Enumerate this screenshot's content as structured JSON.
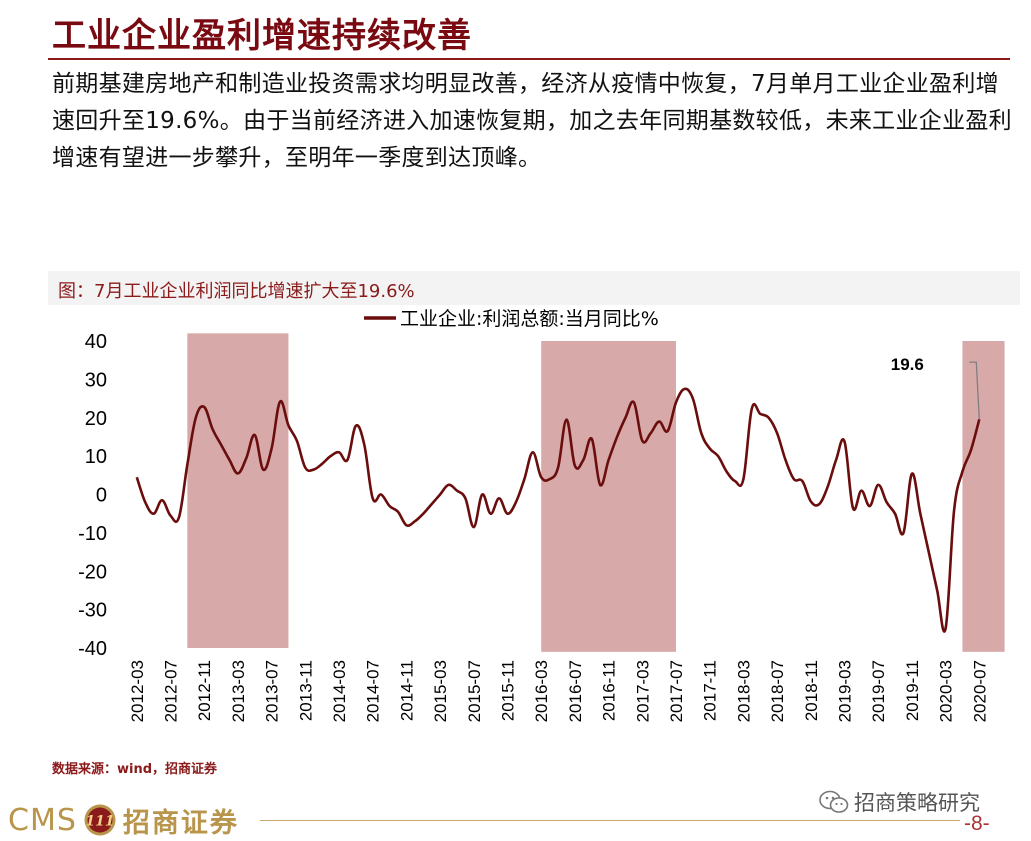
{
  "page": {
    "title": "工业企业盈利增速持续改善",
    "body": "前期基建房地产和制造业投资需求均明显改善，经济从疫情中恢复，7月单月工业企业盈利增速回升至19.6%。由于当前经济进入加速恢复期，加之去年同期基数较低，未来工业企业盈利增速有望进一步攀升，至明年一季度到达顶峰。",
    "source": "数据来源：wind，招商证券",
    "wechat_label": "招商策略研究",
    "logo_text": "CMS",
    "logo_badge": "111",
    "logo_cn": "招商证券",
    "page_number": "-8-"
  },
  "colors": {
    "title": "#7a0a12",
    "line": "#6b0d0d",
    "shade": "#c98c8c",
    "accent": "#8b1a1a",
    "gold": "#b8954a"
  },
  "chart_data": {
    "type": "line",
    "title": "图：7月工业企业利润同比增速扩大至19.6%",
    "legend": "工业企业:利润总额:当月同比%",
    "legend_position": "top-center",
    "ylim": [
      -40,
      40
    ],
    "yticks": [
      40,
      30,
      20,
      10,
      0,
      -10,
      -20,
      -30,
      -40
    ],
    "xticks": [
      "2012-03",
      "2012-07",
      "2012-11",
      "2013-03",
      "2013-07",
      "2013-11",
      "2014-03",
      "2014-07",
      "2014-11",
      "2015-03",
      "2015-07",
      "2015-11",
      "2016-03",
      "2016-07",
      "2016-11",
      "2017-03",
      "2017-07",
      "2017-11",
      "2018-03",
      "2018-07",
      "2018-11",
      "2019-03",
      "2019-07",
      "2019-11",
      "2020-03",
      "2020-07"
    ],
    "x_start": "2012-02",
    "x_end": "2020-07",
    "annotation": {
      "label": "19.6",
      "date": "2020-07",
      "value": 19.6
    },
    "shaded_periods": [
      {
        "start": "2012-09",
        "end": "2013-09",
        "ymin": -40,
        "ymax": 42
      },
      {
        "start": "2016-03",
        "end": "2017-07",
        "ymin": -41,
        "ymax": 40
      },
      {
        "start": "2020-05",
        "end": "2020-10",
        "ymin": -41,
        "ymax": 40
      }
    ],
    "series": [
      {
        "name": "工业企业:利润总额:当月同比%",
        "points": [
          [
            "2012-03",
            4.5
          ],
          [
            "2012-04",
            -2
          ],
          [
            "2012-05",
            -5
          ],
          [
            "2012-06",
            -1.5
          ],
          [
            "2012-07",
            -5.5
          ],
          [
            "2012-08",
            -6
          ],
          [
            "2012-09",
            7.8
          ],
          [
            "2012-10",
            20
          ],
          [
            "2012-11",
            22.8
          ],
          [
            "2012-12",
            17
          ],
          [
            "2013-01",
            13
          ],
          [
            "2013-02",
            9
          ],
          [
            "2013-03",
            5.5
          ],
          [
            "2013-04",
            9.5
          ],
          [
            "2013-05",
            15.5
          ],
          [
            "2013-06",
            6.5
          ],
          [
            "2013-07",
            12
          ],
          [
            "2013-08",
            24.2
          ],
          [
            "2013-09",
            18
          ],
          [
            "2013-10",
            14
          ],
          [
            "2013-11",
            7
          ],
          [
            "2013-12",
            6.5
          ],
          [
            "2014-01",
            8
          ],
          [
            "2014-02",
            10
          ],
          [
            "2014-03",
            11
          ],
          [
            "2014-04",
            9
          ],
          [
            "2014-05",
            17.9
          ],
          [
            "2014-06",
            13
          ],
          [
            "2014-07",
            -1
          ],
          [
            "2014-08",
            0
          ],
          [
            "2014-09",
            -3
          ],
          [
            "2014-10",
            -4.5
          ],
          [
            "2014-11",
            -8
          ],
          [
            "2014-12",
            -7
          ],
          [
            "2015-01",
            -5
          ],
          [
            "2015-02",
            -2.5
          ],
          [
            "2015-03",
            0
          ],
          [
            "2015-04",
            2.5
          ],
          [
            "2015-05",
            1
          ],
          [
            "2015-06",
            -1
          ],
          [
            "2015-07",
            -8.5
          ],
          [
            "2015-08",
            0
          ],
          [
            "2015-09",
            -5
          ],
          [
            "2015-10",
            -1
          ],
          [
            "2015-11",
            -5
          ],
          [
            "2015-12",
            -2
          ],
          [
            "2016-01",
            4
          ],
          [
            "2016-02",
            11
          ],
          [
            "2016-03",
            4.5
          ],
          [
            "2016-04",
            4
          ],
          [
            "2016-05",
            7
          ],
          [
            "2016-06",
            19.5
          ],
          [
            "2016-07",
            7.5
          ],
          [
            "2016-08",
            9
          ],
          [
            "2016-09",
            14.5
          ],
          [
            "2016-10",
            2.5
          ],
          [
            "2016-11",
            9
          ],
          [
            "2016-12",
            15
          ],
          [
            "2017-01",
            20
          ],
          [
            "2017-02",
            24
          ],
          [
            "2017-03",
            14
          ],
          [
            "2017-04",
            16
          ],
          [
            "2017-05",
            19
          ],
          [
            "2017-06",
            16.5
          ],
          [
            "2017-07",
            24
          ],
          [
            "2017-08",
            27.5
          ],
          [
            "2017-09",
            25
          ],
          [
            "2017-10",
            16
          ],
          [
            "2017-11",
            12
          ],
          [
            "2017-12",
            10
          ],
          [
            "2018-01",
            6
          ],
          [
            "2018-02",
            3.5
          ],
          [
            "2018-03",
            4
          ],
          [
            "2018-04",
            22.4
          ],
          [
            "2018-05",
            21
          ],
          [
            "2018-06",
            20
          ],
          [
            "2018-07",
            16
          ],
          [
            "2018-08",
            9
          ],
          [
            "2018-09",
            4
          ],
          [
            "2018-10",
            3.5
          ],
          [
            "2018-11",
            -1.8
          ],
          [
            "2018-12",
            -2.5
          ],
          [
            "2019-01",
            2
          ],
          [
            "2019-02",
            9
          ],
          [
            "2019-03",
            13.8
          ],
          [
            "2019-04",
            -3.5
          ],
          [
            "2019-05",
            1
          ],
          [
            "2019-06",
            -3
          ],
          [
            "2019-07",
            2.5
          ],
          [
            "2019-08",
            -2
          ],
          [
            "2019-09",
            -5
          ],
          [
            "2019-10",
            -10
          ],
          [
            "2019-11",
            5.4
          ],
          [
            "2019-12",
            -5
          ],
          [
            "2020-01",
            -15
          ],
          [
            "2020-02",
            -25
          ],
          [
            "2020-03",
            -34.9
          ],
          [
            "2020-04",
            -4.3
          ],
          [
            "2020-05",
            6
          ],
          [
            "2020-06",
            11.5
          ],
          [
            "2020-07",
            19.6
          ]
        ]
      }
    ]
  }
}
